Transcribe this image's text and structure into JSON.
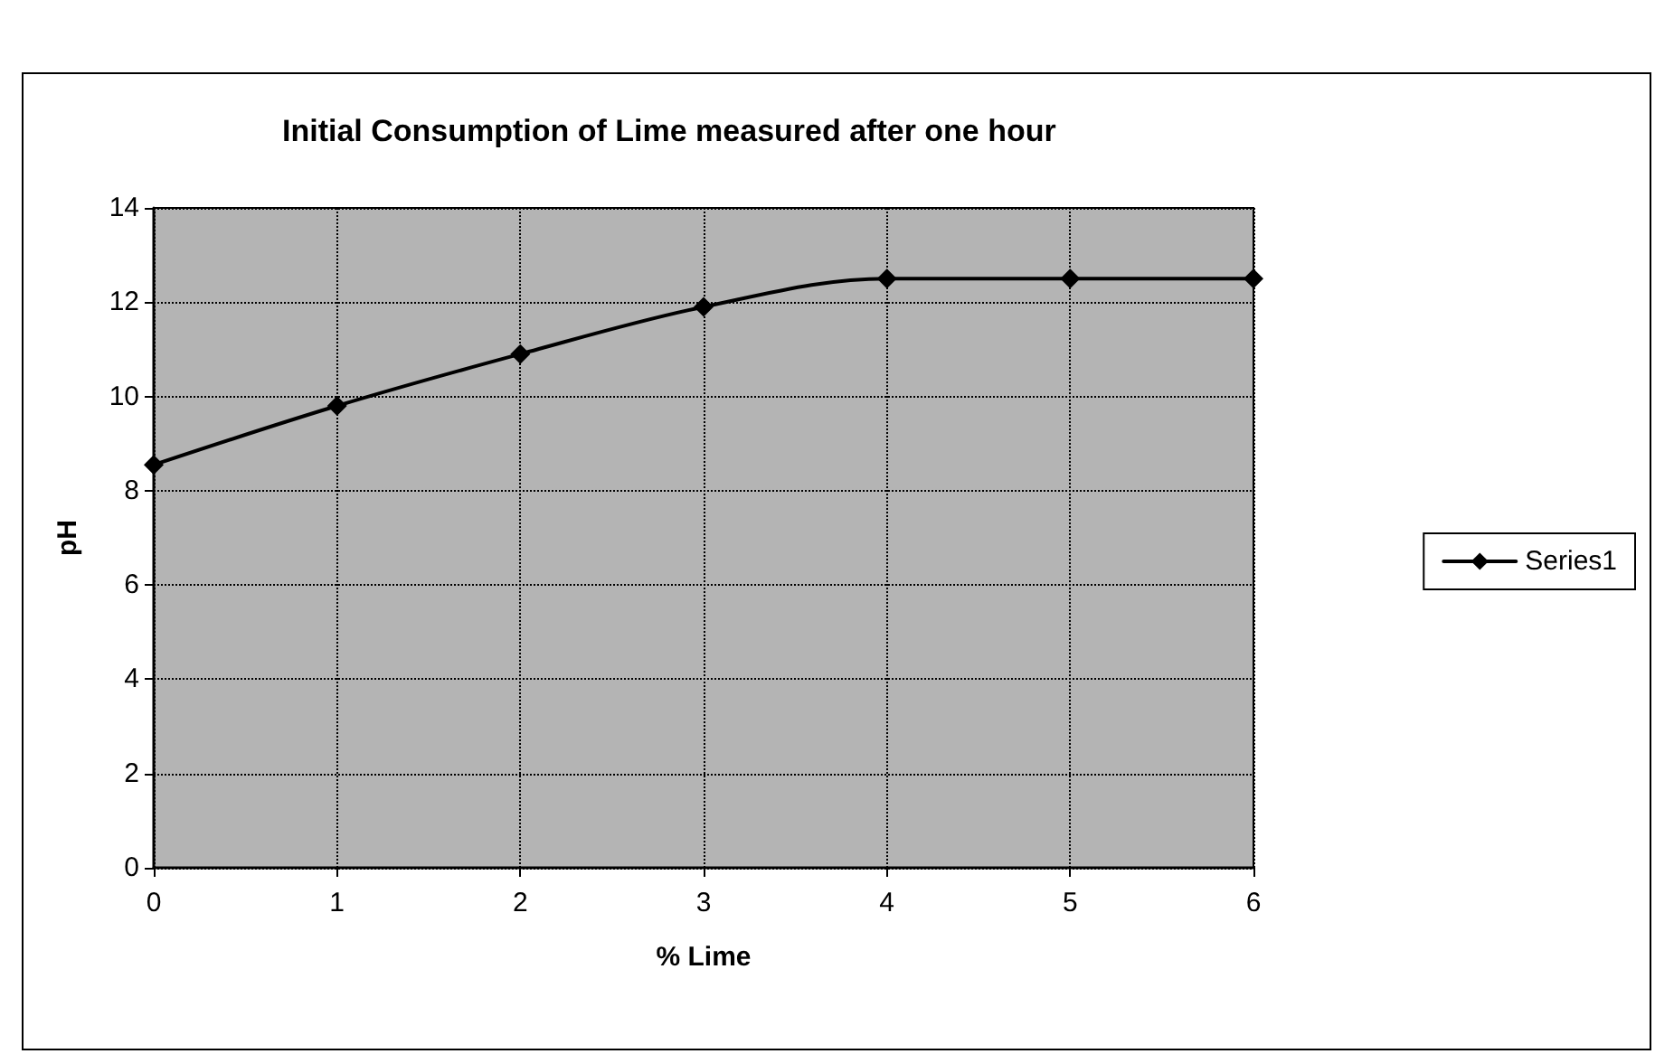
{
  "chart_data": {
    "type": "line",
    "title": "Initial Consumption of Lime measured after one hour",
    "xlabel": "% Lime",
    "ylabel": "pH",
    "x": [
      0,
      1,
      2,
      3,
      4,
      5,
      6
    ],
    "series": [
      {
        "name": "Series1",
        "color": "#000000",
        "values": [
          8.55,
          9.8,
          10.9,
          11.9,
          12.5,
          12.5,
          12.5
        ]
      }
    ],
    "xlim": [
      0,
      6
    ],
    "xticks": [
      0,
      1,
      2,
      3,
      4,
      5,
      6
    ],
    "ylim": [
      0,
      14
    ],
    "yticks": [
      0,
      2,
      4,
      6,
      8,
      10,
      12,
      14
    ],
    "grid": true,
    "legend": "right",
    "marker": "diamond",
    "line_style": "solid"
  }
}
